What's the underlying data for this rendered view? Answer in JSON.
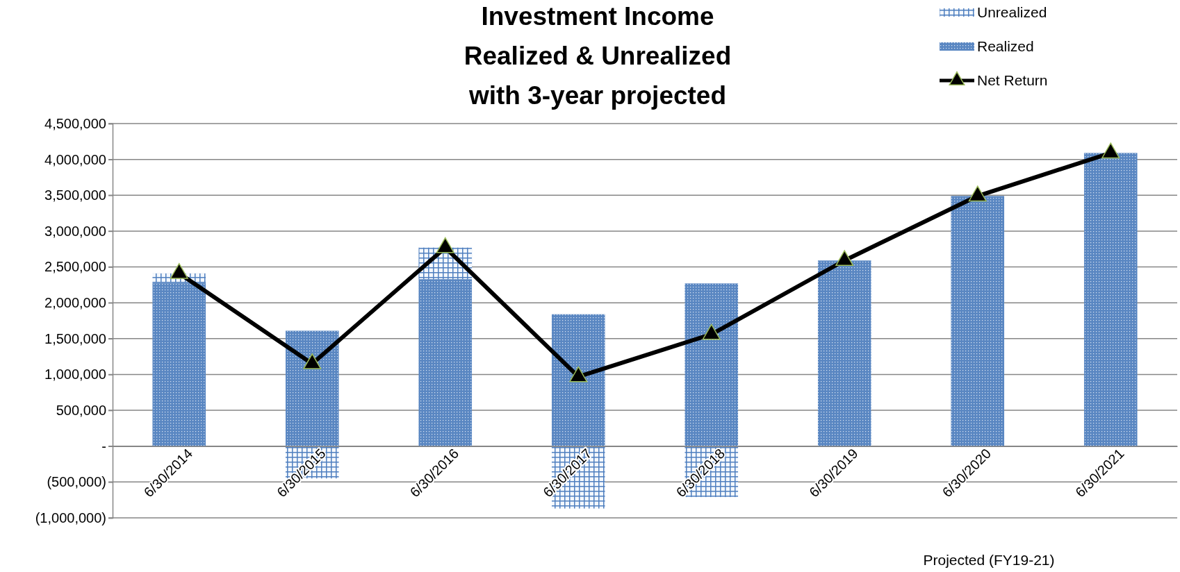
{
  "chart_data": {
    "type": "bar",
    "title": "Investment Income\nRealized & Unrealized\nwith 3-year projected",
    "categories": [
      "6/30/2014",
      "6/30/2015",
      "6/30/2016",
      "6/30/2017",
      "6/30/2018",
      "6/30/2019",
      "6/30/2020",
      "6/30/2021"
    ],
    "stacked": true,
    "series": [
      {
        "name": "Realized",
        "color": "#5a87c2",
        "values": [
          2280000,
          1610000,
          2330000,
          1840000,
          2270000,
          2590000,
          3490000,
          4090000
        ]
      },
      {
        "name": "Unrealized",
        "color": "#4f7fbf",
        "values": [
          130000,
          -450000,
          440000,
          -870000,
          -710000,
          null,
          null,
          null
        ]
      },
      {
        "name": "Net Return",
        "type": "line",
        "color": "#000000",
        "values": [
          2410000,
          1150000,
          2770000,
          970000,
          1560000,
          2590000,
          3490000,
          4090000
        ]
      }
    ],
    "ylim": [
      -1000000,
      4500000
    ],
    "yticks": [
      {
        "value": -1000000,
        "label": "(1,000,000)"
      },
      {
        "value": -500000,
        "label": "(500,000)"
      },
      {
        "value": 0,
        "label": "-"
      },
      {
        "value": 500000,
        "label": "500,000"
      },
      {
        "value": 1000000,
        "label": "1,000,000"
      },
      {
        "value": 1500000,
        "label": "1,500,000"
      },
      {
        "value": 2000000,
        "label": "2,000,000"
      },
      {
        "value": 2500000,
        "label": "2,500,000"
      },
      {
        "value": 3000000,
        "label": "3,000,000"
      },
      {
        "value": 3500000,
        "label": "3,500,000"
      },
      {
        "value": 4000000,
        "label": "4,000,000"
      },
      {
        "value": 4500000,
        "label": "4,500,000"
      }
    ],
    "grid": "y",
    "legend": "top right",
    "marker": "triangle",
    "annotations": [
      "Projected (FY19-21)"
    ]
  }
}
